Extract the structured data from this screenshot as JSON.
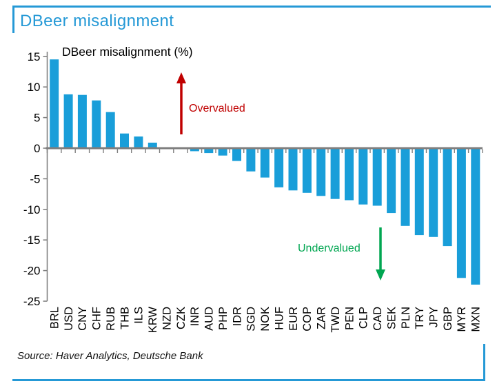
{
  "header": {
    "title": "DBeer misalignment"
  },
  "chart_data": {
    "type": "bar",
    "title": "DBeer misalignment (%)",
    "categories": [
      "BRL",
      "USD",
      "CNY",
      "CHF",
      "RUB",
      "THB",
      "ILS",
      "KRW",
      "NZD",
      "CZK",
      "INR",
      "AUD",
      "PHP",
      "IDR",
      "SGD",
      "NOK",
      "HUF",
      "EUR",
      "COP",
      "ZAR",
      "TWD",
      "PEN",
      "CLP",
      "CAD",
      "SEK",
      "PLN",
      "TRY",
      "JPY",
      "GBP",
      "MYR",
      "MXN"
    ],
    "values": [
      14.5,
      8.8,
      8.7,
      7.8,
      5.9,
      2.4,
      1.9,
      0.9,
      0.0,
      -0.1,
      -0.5,
      -0.8,
      -1.2,
      -2.1,
      -3.8,
      -4.8,
      -6.4,
      -6.9,
      -7.3,
      -7.8,
      -8.3,
      -8.5,
      -9.2,
      -9.4,
      -10.6,
      -12.7,
      -14.2,
      -14.5,
      -16.0,
      -21.2,
      -22.3
    ],
    "xlabel": "",
    "ylabel": "",
    "ylim": [
      -25,
      15
    ],
    "yticks": [
      15,
      10,
      5,
      0,
      -5,
      -10,
      -15,
      -20,
      -25
    ],
    "grid": false,
    "legend": "none",
    "bar_color": "#199ed9",
    "axis_color": "#808080",
    "zero_line_color": "#7f7f7f",
    "annotations": [
      {
        "text": "Overvalued",
        "arrow": "up",
        "color": "#c00000"
      },
      {
        "text": "Undervalued",
        "arrow": "down",
        "color": "#00a651"
      }
    ]
  },
  "source": {
    "text": "Source: Haver Analytics, Deutsche Bank"
  },
  "colors": {
    "accent_blue": "#2599d6",
    "bar_blue": "#199ed9",
    "overvalued_red": "#c00000",
    "undervalued_green": "#00a651",
    "axis_gray": "#808080"
  }
}
